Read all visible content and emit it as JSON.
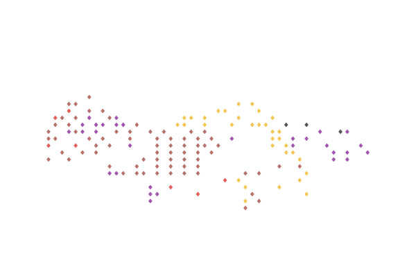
{
  "chart_data": {
    "type": "scatter",
    "marker": "diamond",
    "grid": false,
    "axes_visible": false,
    "legend": "none",
    "xlim": [
      0,
      48
    ],
    "ylim": [
      0,
      21
    ],
    "series": [
      {
        "color": "#b9706a",
        "points": [
          [
            6,
            16
          ],
          [
            3,
            15
          ],
          [
            4,
            15
          ],
          [
            6,
            14
          ],
          [
            8,
            14
          ],
          [
            2,
            13
          ],
          [
            4,
            13
          ],
          [
            6,
            13
          ],
          [
            9,
            13
          ],
          [
            1,
            12
          ],
          [
            3,
            12
          ],
          [
            7,
            12
          ],
          [
            11,
            12
          ],
          [
            13,
            12
          ],
          [
            0,
            11
          ],
          [
            4,
            11
          ],
          [
            10,
            11
          ],
          [
            12,
            11
          ],
          [
            15,
            11
          ],
          [
            17,
            11
          ],
          [
            21,
            11
          ],
          [
            23,
            11
          ],
          [
            0,
            10
          ],
          [
            1,
            10
          ],
          [
            6,
            10
          ],
          [
            8,
            10
          ],
          [
            12,
            10
          ],
          [
            16,
            10
          ],
          [
            18,
            10
          ],
          [
            20,
            10
          ],
          [
            22,
            10
          ],
          [
            24,
            10
          ],
          [
            7,
            9
          ],
          [
            9,
            9
          ],
          [
            16,
            9
          ],
          [
            18,
            9
          ],
          [
            20,
            9
          ],
          [
            22,
            9
          ],
          [
            23,
            9
          ],
          [
            25,
            9
          ],
          [
            2,
            8
          ],
          [
            5,
            8
          ],
          [
            7,
            8
          ],
          [
            16,
            8
          ],
          [
            18,
            8
          ],
          [
            20,
            8
          ],
          [
            22,
            8
          ],
          [
            24,
            8
          ],
          [
            0,
            7
          ],
          [
            3,
            7
          ],
          [
            14,
            7
          ],
          [
            16,
            7
          ],
          [
            18,
            7
          ],
          [
            20,
            7
          ],
          [
            22,
            7
          ],
          [
            9,
            6
          ],
          [
            13,
            6
          ],
          [
            16,
            6
          ],
          [
            18,
            6
          ],
          [
            20,
            6
          ],
          [
            22,
            6
          ],
          [
            34,
            6
          ],
          [
            37,
            6
          ],
          [
            11,
            5
          ],
          [
            13,
            5
          ],
          [
            14,
            5
          ],
          [
            16,
            5
          ],
          [
            18,
            5
          ],
          [
            20,
            5
          ],
          [
            22,
            5
          ],
          [
            29,
            5
          ],
          [
            31,
            5
          ],
          [
            30,
            2
          ],
          [
            31,
            1
          ],
          [
            29,
            0
          ]
        ]
      },
      {
        "color": "#a252b0",
        "points": [
          [
            6,
            13
          ],
          [
            10,
            13
          ],
          [
            5,
            12
          ],
          [
            7,
            12
          ],
          [
            8,
            12
          ],
          [
            10,
            12
          ],
          [
            3,
            11
          ],
          [
            5,
            11
          ],
          [
            7,
            11
          ],
          [
            11,
            12
          ],
          [
            27,
            10
          ],
          [
            36,
            10
          ],
          [
            38,
            10
          ],
          [
            40,
            11
          ],
          [
            44,
            11
          ],
          [
            12,
            9
          ],
          [
            36,
            9
          ],
          [
            41,
            9
          ],
          [
            46,
            9
          ],
          [
            42,
            8
          ],
          [
            44,
            8
          ],
          [
            47,
            8
          ],
          [
            42,
            7
          ],
          [
            44,
            7
          ],
          [
            9,
            5
          ],
          [
            10,
            5
          ],
          [
            15,
            3
          ],
          [
            15,
            2
          ],
          [
            16,
            2
          ],
          [
            15,
            1
          ]
        ]
      },
      {
        "color": "#e45c55",
        "points": [
          [
            3,
            14
          ],
          [
            1,
            13
          ],
          [
            0,
            9
          ],
          [
            4,
            9
          ],
          [
            18,
            3
          ],
          [
            22,
            2
          ],
          [
            26,
            4
          ]
        ]
      },
      {
        "color": "#f6c452",
        "points": [
          [
            28,
            15
          ],
          [
            30,
            15
          ],
          [
            25,
            14
          ],
          [
            26,
            14
          ],
          [
            31,
            14
          ],
          [
            20,
            13
          ],
          [
            21,
            13
          ],
          [
            23,
            13
          ],
          [
            28,
            13
          ],
          [
            33,
            13
          ],
          [
            19,
            12
          ],
          [
            20,
            12
          ],
          [
            23,
            12
          ],
          [
            27,
            12
          ],
          [
            30,
            12
          ],
          [
            31,
            12
          ],
          [
            32,
            12
          ],
          [
            33,
            11
          ],
          [
            34,
            11
          ],
          [
            33,
            10
          ],
          [
            34,
            10
          ],
          [
            33,
            9
          ],
          [
            35,
            9
          ],
          [
            35,
            8
          ],
          [
            36,
            8
          ],
          [
            37,
            7
          ],
          [
            38,
            5
          ],
          [
            28,
            4
          ],
          [
            37,
            4
          ],
          [
            34,
            3
          ],
          [
            29,
            3
          ],
          [
            38,
            2
          ],
          [
            29,
            1
          ]
        ]
      },
      {
        "color": "#555555",
        "points": [
          [
            35,
            12
          ],
          [
            38,
            12
          ],
          [
            43,
            11
          ]
        ]
      }
    ]
  }
}
